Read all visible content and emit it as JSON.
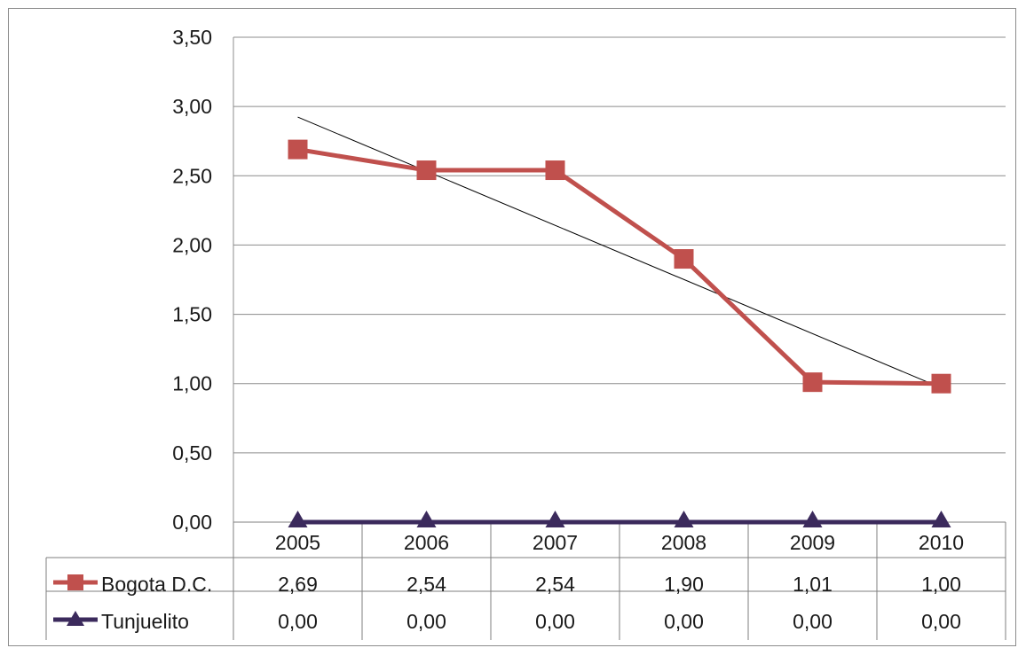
{
  "chart_data": {
    "type": "line",
    "categories": [
      "2005",
      "2006",
      "2007",
      "2008",
      "2009",
      "2010"
    ],
    "series": [
      {
        "name": "Bogota D.C.",
        "values": [
          2.69,
          2.54,
          2.54,
          1.9,
          1.01,
          1.0
        ],
        "labels": [
          "2,69",
          "2,54",
          "2,54",
          "1,90",
          "1,01",
          "1,00"
        ],
        "color": "#c0504d",
        "marker": "square"
      },
      {
        "name": "Tunjuelito",
        "values": [
          0,
          0,
          0,
          0,
          0,
          0
        ],
        "labels": [
          "0,00",
          "0,00",
          "0,00",
          "0,00",
          "0,00",
          "0,00"
        ],
        "color": "#3b2a5c",
        "marker": "triangle"
      }
    ],
    "trendline": {
      "series": "Bogota D.C.",
      "type": "linear",
      "color": "#000000"
    },
    "ylim": [
      0,
      3.5
    ],
    "yticks": [
      "0,00",
      "0,50",
      "1,00",
      "1,50",
      "2,00",
      "2,50",
      "3,00",
      "3,50"
    ],
    "grid": true,
    "legend": "data-table",
    "title": "",
    "xlabel": "",
    "ylabel": ""
  }
}
